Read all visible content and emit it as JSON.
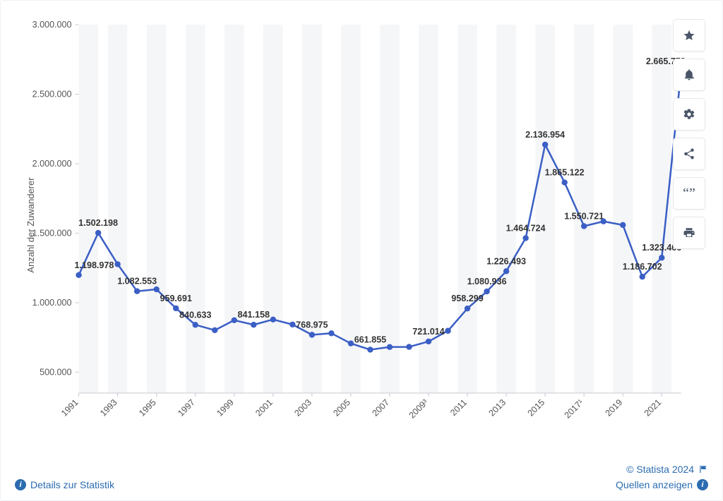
{
  "chart": {
    "type": "line",
    "y_axis_title": "Anzahl der Zuwanderer",
    "background_color": "#ffffff",
    "grid_band_color": "#f5f6f8",
    "axis_line_color": "#c6c9cf",
    "tick_label_color": "#555555",
    "line_color": "#3b5fc5",
    "line_width": 2.5,
    "marker": "circle",
    "marker_radius": 4.2,
    "marker_fill": "#3b5fc5",
    "label_fontsize": 12.5,
    "label_weight": 600,
    "ylim": [
      350000,
      3000000
    ],
    "yticks": [
      500000,
      1000000,
      1500000,
      2000000,
      2500000,
      3000000
    ],
    "ytick_labels": [
      "500.000",
      "1.000.000",
      "1.500.000",
      "2.000.000",
      "2.500.000",
      "3.000.000"
    ],
    "x_label_years": [
      "1991",
      "1993",
      "1995",
      "1997",
      "1999",
      "2001",
      "2003",
      "2005",
      "2007",
      "2009³",
      "2011",
      "2013",
      "2015",
      "2017¹",
      "2019",
      "2021"
    ],
    "x_label_step": 2,
    "x_label_rotate_deg": -45,
    "series": [
      {
        "year": "1991",
        "value": 1198978,
        "label": "1.198.978",
        "show": true
      },
      {
        "year": "1992",
        "value": 1502198,
        "label": "1.502.198",
        "show": true
      },
      {
        "year": "1993",
        "value": 1277000,
        "label": "",
        "show": false
      },
      {
        "year": "1994",
        "value": 1082553,
        "label": "1.082.553",
        "show": true
      },
      {
        "year": "1995",
        "value": 1096000,
        "label": "",
        "show": false
      },
      {
        "year": "1996",
        "value": 959691,
        "label": "959.691",
        "show": true
      },
      {
        "year": "1997",
        "value": 840633,
        "label": "840.633",
        "show": true
      },
      {
        "year": "1998",
        "value": 802000,
        "label": "",
        "show": false
      },
      {
        "year": "1999",
        "value": 874000,
        "label": "",
        "show": false
      },
      {
        "year": "2000",
        "value": 841158,
        "label": "841.158",
        "show": true
      },
      {
        "year": "2001",
        "value": 879000,
        "label": "",
        "show": false
      },
      {
        "year": "2002",
        "value": 843000,
        "label": "",
        "show": false
      },
      {
        "year": "2003",
        "value": 768975,
        "label": "768.975",
        "show": true
      },
      {
        "year": "2004",
        "value": 780000,
        "label": "",
        "show": false
      },
      {
        "year": "2005",
        "value": 707000,
        "label": "",
        "show": false
      },
      {
        "year": "2006",
        "value": 661855,
        "label": "661.855",
        "show": true
      },
      {
        "year": "2007",
        "value": 681000,
        "label": "",
        "show": false
      },
      {
        "year": "2008",
        "value": 682000,
        "label": "",
        "show": false
      },
      {
        "year": "2009³",
        "value": 721014,
        "label": "721.014",
        "show": true
      },
      {
        "year": "2010",
        "value": 798000,
        "label": "",
        "show": false
      },
      {
        "year": "2011",
        "value": 958299,
        "label": "958.299",
        "show": true
      },
      {
        "year": "2012",
        "value": 1080936,
        "label": "1.080.936",
        "show": true
      },
      {
        "year": "2013",
        "value": 1226493,
        "label": "1.226.493",
        "show": true
      },
      {
        "year": "2014",
        "value": 1464724,
        "label": "1.464.724",
        "show": true
      },
      {
        "year": "2015",
        "value": 2136954,
        "label": "2.136.954",
        "show": true
      },
      {
        "year": "2016",
        "value": 1865122,
        "label": "1.865.122",
        "show": true
      },
      {
        "year": "2017¹",
        "value": 1550721,
        "label": "1.550.721",
        "show": true
      },
      {
        "year": "2018",
        "value": 1585000,
        "label": "",
        "show": false
      },
      {
        "year": "2019",
        "value": 1559000,
        "label": "",
        "show": false
      },
      {
        "year": "2020",
        "value": 1186702,
        "label": "1.186.702",
        "show": true
      },
      {
        "year": "2021",
        "value": 1323466,
        "label": "1.323.466",
        "show": true
      },
      {
        "year": "2022",
        "value": 2665772,
        "label": "2.665.772",
        "show": true
      }
    ]
  },
  "footer": {
    "details_label": "Details zur Statistik",
    "copyright": "© Statista 2024",
    "sources_label": "Quellen anzeigen"
  },
  "actions": {
    "favorite": "favorite",
    "notify": "notify",
    "settings": "settings",
    "share": "share",
    "cite": "cite",
    "print": "print"
  }
}
